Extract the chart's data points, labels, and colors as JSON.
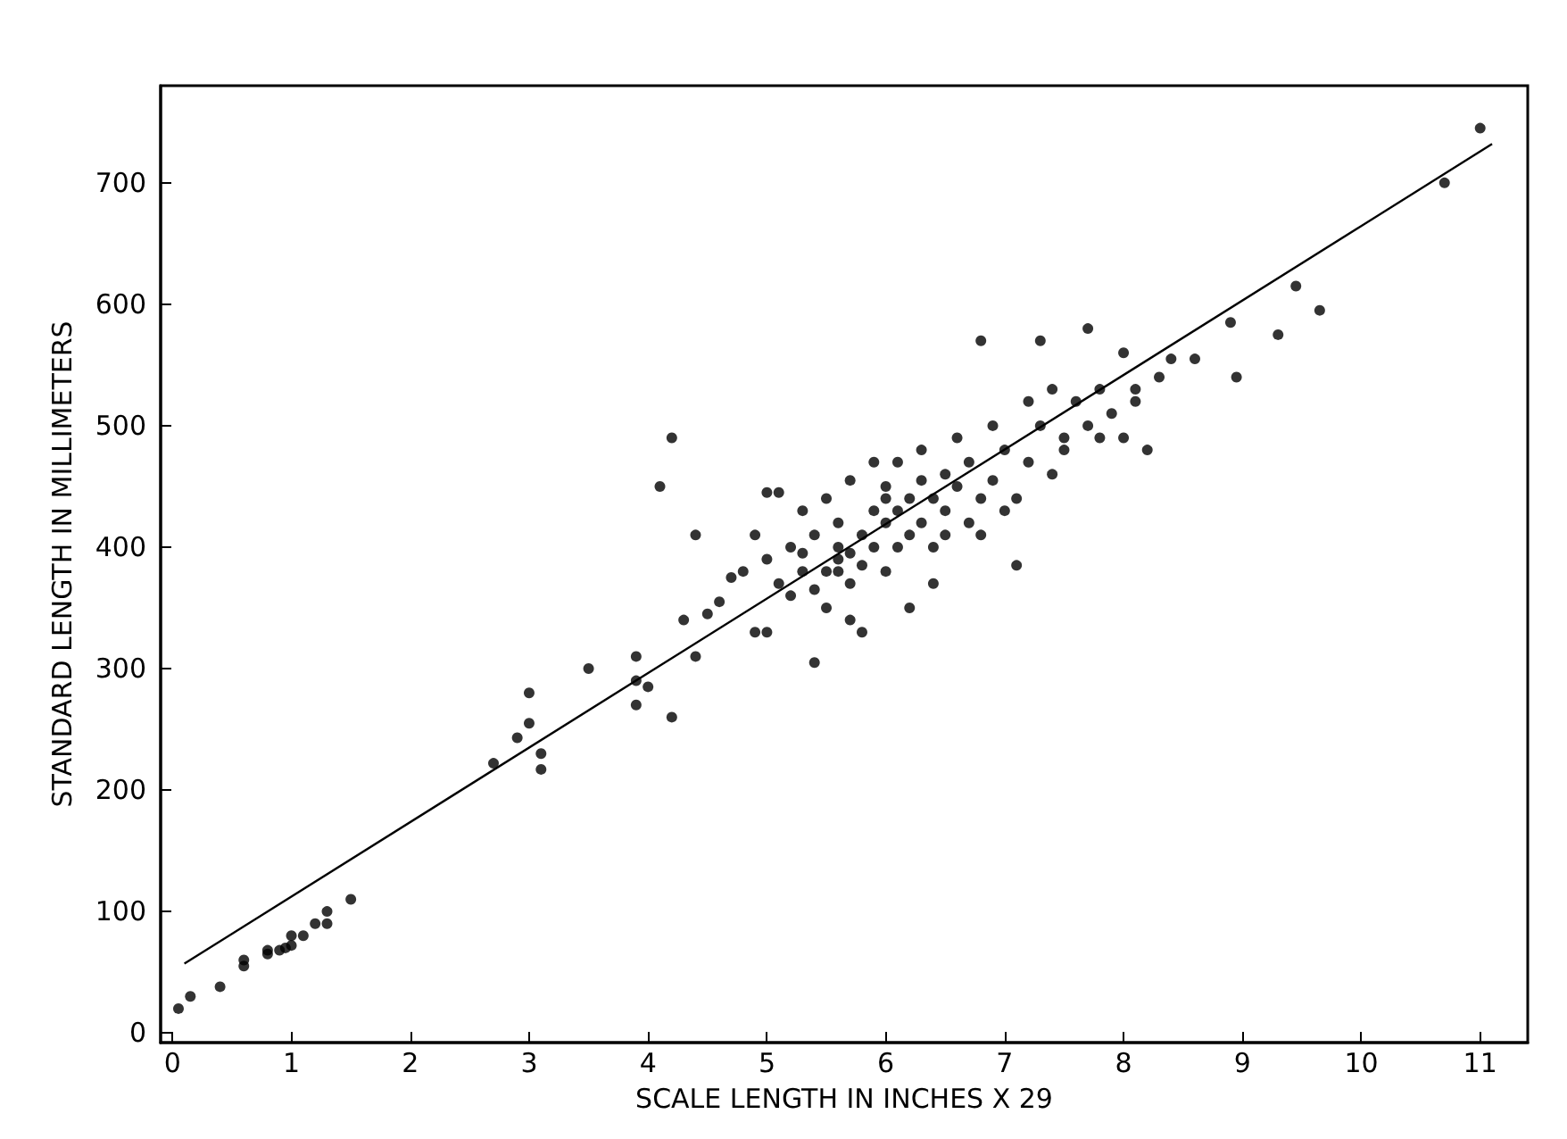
{
  "chart_data": {
    "type": "scatter",
    "xlabel": "SCALE LENGTH IN INCHES X 29",
    "ylabel": "STANDARD LENGTH IN MILLIMETERS",
    "xlim": [
      -0.1,
      11.4
    ],
    "ylim": [
      -8,
      780
    ],
    "xticks": [
      0,
      1,
      2,
      3,
      4,
      5,
      6,
      7,
      8,
      9,
      10,
      11
    ],
    "yticks": [
      0,
      100,
      200,
      300,
      400,
      500,
      600,
      700
    ],
    "marker": "circle",
    "series": [
      {
        "color": "#000000",
        "x": [
          0.05,
          0.15,
          0.4,
          0.6,
          0.6,
          0.8,
          0.8,
          0.9,
          0.95,
          1.0,
          1.0,
          1.1,
          1.2,
          1.3,
          1.3,
          1.5,
          2.7,
          2.9,
          3.0,
          3.0,
          3.1,
          3.1,
          3.5,
          3.9,
          3.9,
          3.9,
          4.0,
          4.1,
          4.2,
          4.2,
          4.3,
          4.4,
          4.4,
          4.5,
          4.6,
          4.7,
          4.8,
          4.9,
          4.9,
          5.0,
          5.0,
          5.0,
          5.1,
          5.1,
          5.2,
          5.2,
          5.3,
          5.3,
          5.3,
          5.4,
          5.4,
          5.4,
          5.5,
          5.5,
          5.5,
          5.6,
          5.6,
          5.6,
          5.6,
          5.7,
          5.7,
          5.7,
          5.7,
          5.8,
          5.8,
          5.8,
          5.9,
          5.9,
          5.9,
          6.0,
          6.0,
          6.0,
          6.0,
          6.1,
          6.1,
          6.1,
          6.2,
          6.2,
          6.2,
          6.3,
          6.3,
          6.3,
          6.4,
          6.4,
          6.4,
          6.5,
          6.5,
          6.5,
          6.6,
          6.6,
          6.7,
          6.7,
          6.8,
          6.8,
          6.8,
          6.9,
          6.9,
          7.0,
          7.0,
          7.1,
          7.1,
          7.2,
          7.2,
          7.3,
          7.3,
          7.4,
          7.4,
          7.5,
          7.5,
          7.6,
          7.7,
          7.7,
          7.8,
          7.8,
          7.9,
          8.0,
          8.0,
          8.1,
          8.1,
          8.2,
          8.3,
          8.4,
          8.6,
          8.9,
          8.95,
          9.3,
          9.45,
          9.65,
          10.7,
          11.0
        ],
        "values": [
          20,
          30,
          38,
          55,
          60,
          65,
          68,
          68,
          70,
          72,
          80,
          80,
          90,
          90,
          100,
          110,
          222,
          243,
          255,
          280,
          230,
          217,
          300,
          290,
          310,
          270,
          285,
          450,
          490,
          260,
          340,
          410,
          310,
          345,
          355,
          375,
          380,
          330,
          410,
          390,
          445,
          330,
          370,
          445,
          360,
          400,
          430,
          395,
          380,
          305,
          365,
          410,
          380,
          350,
          440,
          400,
          390,
          380,
          420,
          370,
          340,
          455,
          395,
          410,
          385,
          330,
          470,
          430,
          400,
          450,
          420,
          380,
          440,
          430,
          470,
          400,
          410,
          440,
          350,
          455,
          420,
          480,
          400,
          440,
          370,
          430,
          460,
          410,
          490,
          450,
          420,
          470,
          570,
          440,
          410,
          500,
          455,
          430,
          480,
          385,
          440,
          520,
          470,
          570,
          500,
          460,
          530,
          490,
          480,
          520,
          580,
          500,
          490,
          530,
          510,
          560,
          490,
          520,
          530,
          480,
          540,
          555,
          555,
          585,
          540,
          575,
          615,
          595,
          700,
          745
        ]
      },
      {
        "type": "line",
        "color": "#000000",
        "marker": "none",
        "x": [
          0.1,
          11.1
        ],
        "values": [
          57,
          732
        ]
      }
    ]
  }
}
